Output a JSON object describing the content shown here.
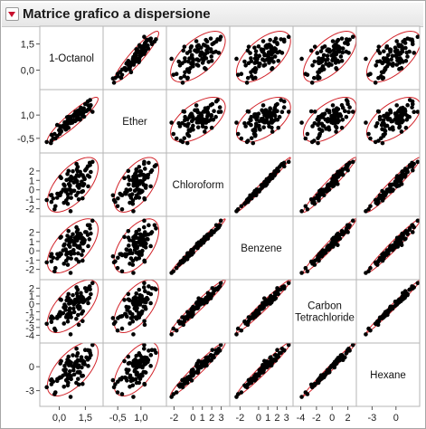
{
  "window": {
    "title": "Matrice grafico a dispersione"
  },
  "icons": {
    "menu": "red-triangle-disclosure-icon"
  },
  "colors": {
    "points": "#000000",
    "ellipse": "#d2232a",
    "grid": "#b5b5b5"
  },
  "chart_data": {
    "type": "scatter",
    "title": "Matrice grafico a dispersione",
    "variables": [
      "1-Octanol",
      "Ether",
      "Chloroform",
      "Benzene",
      "Carbon Tetrachloride",
      "Hexane"
    ],
    "diagonal_labels": [
      "1-Octanol",
      "Ether",
      "Chloroform",
      "Benzene",
      [
        "Carbon",
        "Tetrachloride"
      ],
      "Hexane"
    ],
    "ranges": [
      [
        -0.9,
        2.3
      ],
      [
        -1.2,
        2.4
      ],
      [
        -2.4,
        3.5
      ],
      [
        -2.7,
        3.3
      ],
      [
        -4.5,
        2.6
      ],
      [
        -4.5,
        2.5
      ]
    ],
    "y_ticks": [
      [
        {
          "v": 1.5,
          "label": "1,5"
        },
        {
          "v": 0,
          "label": "0,0"
        }
      ],
      [
        {
          "v": 1,
          "label": "1,0"
        },
        {
          "v": -0.5,
          "label": "-0,5"
        }
      ],
      [
        {
          "v": 2,
          "label": "2"
        },
        {
          "v": 1,
          "label": "1"
        },
        {
          "v": 0,
          "label": "0"
        },
        {
          "v": -1,
          "label": "-1"
        },
        {
          "v": -2,
          "label": "-2"
        }
      ],
      [
        {
          "v": 2,
          "label": "2"
        },
        {
          "v": 1,
          "label": "1"
        },
        {
          "v": 0,
          "label": "0"
        },
        {
          "v": -1,
          "label": "-1"
        },
        {
          "v": -2,
          "label": "-2"
        }
      ],
      [
        {
          "v": 2,
          "label": "2"
        },
        {
          "v": 1,
          "label": "1"
        },
        {
          "v": 0,
          "label": "0"
        },
        {
          "v": -1,
          "label": "-1"
        },
        {
          "v": -2,
          "label": "-2"
        },
        {
          "v": -3,
          "label": "-3"
        },
        {
          "v": -4,
          "label": "-4"
        }
      ],
      [
        {
          "v": 0,
          "label": "0"
        },
        {
          "v": -3,
          "label": "-3"
        }
      ]
    ],
    "x_ticks": [
      [
        {
          "v": 0,
          "label": "0,0"
        },
        {
          "v": 1.5,
          "label": "1,5"
        }
      ],
      [
        {
          "v": -0.5,
          "label": "-0,5"
        },
        {
          "v": 1,
          "label": "1,0"
        }
      ],
      [
        {
          "v": -2,
          "label": "-2"
        },
        {
          "v": 0,
          "label": "0"
        },
        {
          "v": 1,
          "label": "1"
        },
        {
          "v": 2,
          "label": "2"
        },
        {
          "v": 3,
          "label": "3"
        }
      ],
      [
        {
          "v": -2,
          "label": "-2"
        },
        {
          "v": 0,
          "label": "0"
        },
        {
          "v": 1,
          "label": "1"
        },
        {
          "v": 2,
          "label": "2"
        },
        {
          "v": 3,
          "label": "3"
        }
      ],
      [
        {
          "v": -4,
          "label": "-4"
        },
        {
          "v": -2,
          "label": "-2"
        },
        {
          "v": 0,
          "label": "0"
        },
        {
          "v": 2,
          "label": "2"
        }
      ],
      [
        {
          "v": -3,
          "label": "-3"
        },
        {
          "v": 0,
          "label": "0"
        }
      ]
    ],
    "points": [
      [
        0.55,
        0.53,
        0.61,
        0.62,
        0.7,
        0.72
      ],
      [
        1.91,
        1.21,
        2.96,
        3.24,
        2.65,
        2.73
      ],
      [
        1.13,
        0.73,
        1.46,
        1.39,
        0.19,
        0.16
      ],
      [
        -0.27,
        -0.22,
        -2.06,
        -2.21,
        -3.15,
        -3.44
      ],
      [
        1.2,
        0.7,
        1.9,
        1.84,
        0.72,
        0.77
      ],
      [
        1.24,
        1.47,
        1.59,
        1.75,
        1.38,
        0.85
      ],
      [
        0.11,
        -0.02,
        -0.28,
        -0.36,
        -1.27,
        -1.34
      ],
      [
        1.43,
        0.9,
        0.61,
        0.9,
        0.35,
        0.62
      ],
      [
        1.49,
        1.71,
        2.06,
        2.01,
        2.0,
        2.1
      ],
      [
        0.45,
        0.86,
        0.0,
        -0.17,
        -1.4,
        -1.07
      ],
      [
        1.06,
        0.88,
        2.43,
        2.26,
        1.8,
        1.69
      ],
      [
        0.37,
        0.06,
        0.02,
        0.15,
        -0.38,
        -0.37
      ],
      [
        0.61,
        0.76,
        0.41,
        0.44,
        0.11,
        0.22
      ],
      [
        0.4,
        0.48,
        -1.12,
        -1.07,
        -1.7,
        -1.68
      ],
      [
        1.41,
        1.44,
        1.31,
        1.24,
        0.59,
        0.61
      ],
      [
        0.59,
        0.72,
        1.12,
        0.87,
        0.44,
        0.65
      ],
      [
        1.25,
        1.15,
        1.6,
        1.71,
        0.59,
        0.79
      ],
      [
        1.35,
        0.92,
        1.54,
        1.36,
        0.82,
        0.76
      ],
      [
        0.68,
        0.51,
        1.4,
        1.44,
        0.38,
        0.52
      ],
      [
        1.08,
        0.95,
        -0.3,
        -0.28,
        -1.41,
        -1.53
      ],
      [
        -0.22,
        -0.51,
        -1.73,
        -1.86,
        -3.39,
        -3.22
      ],
      [
        1.01,
        0.7,
        2.16,
        2.04,
        1.33,
        1.36
      ],
      [
        0.93,
        1.21,
        1.18,
        1.14,
        0.25,
        0.26
      ],
      [
        1.64,
        1.34,
        1.51,
        1.7,
        0.6,
        0.89
      ],
      [
        0.61,
        0.59,
        0.49,
        0.44,
        -0.57,
        -0.58
      ],
      [
        1.37,
        1.32,
        0.45,
        0.77,
        0.21,
        0.4
      ],
      [
        0.22,
        0.31,
        0.01,
        0.05,
        -1.18,
        -1.1
      ],
      [
        0.78,
        0.94,
        1.96,
        1.78,
        1.11,
        1.44
      ],
      [
        -0.45,
        -0.66,
        -1.28,
        -1.14,
        -2.3,
        -2.2
      ],
      [
        0.05,
        0.28,
        -0.57,
        -0.27,
        -1.04,
        -1.33
      ],
      [
        0.99,
        1.2,
        2.74,
        2.53,
        2.11,
        2.26
      ],
      [
        1.66,
        1.63,
        0.37,
        0.5,
        0.09,
        0.1
      ],
      [
        0.75,
        0.51,
        1.2,
        1.06,
        0.18,
        0.09
      ],
      [
        0.03,
        -0.21,
        -0.56,
        -0.48,
        -1.56,
        -1.38
      ],
      [
        1.64,
        1.88,
        2.48,
        2.76,
        1.96,
        2.08
      ],
      [
        0.67,
        0.86,
        -0.36,
        -0.37,
        -1.17,
        -1.23
      ],
      [
        1.56,
        1.26,
        2.23,
        2.0,
        1.62,
        1.17
      ],
      [
        -0.44,
        -0.28,
        -0.54,
        -0.35,
        -1.61,
        -1.59
      ],
      [
        0.42,
        0.27,
        1.04,
        1.13,
        0.45,
        0.47
      ],
      [
        1.46,
        1.23,
        1.14,
        1.14,
        0.39,
        0.31
      ],
      [
        -0.01,
        0.02,
        -0.43,
        -0.6,
        -1.33,
        -1.44
      ],
      [
        1.27,
        1.05,
        1.59,
        1.31,
        1.0,
        1.2
      ],
      [
        0.31,
        0.53,
        0.44,
        0.7,
        -0.09,
        0.11
      ],
      [
        0.47,
        0.62,
        1.67,
        1.61,
        0.85,
        0.88
      ],
      [
        1.08,
        0.73,
        0.51,
        0.38,
        -0.24,
        -0.1
      ],
      [
        0.82,
        0.61,
        -0.1,
        0.08,
        -0.61,
        -0.43
      ],
      [
        0.84,
        0.94,
        0.79,
        0.86,
        -0.08,
        0.01
      ],
      [
        1.17,
        1.17,
        0.55,
        0.52,
        -0.35,
        -0.66
      ],
      [
        1.12,
        1.24,
        -1.01,
        -1.17,
        -2.66,
        -2.24
      ],
      [
        -0.35,
        -0.49,
        -0.91,
        -0.75,
        -1.81,
        -1.87
      ],
      [
        0.41,
        0.09,
        -0.12,
        -0.41,
        -1.61,
        -1.73
      ],
      [
        0.91,
        0.61,
        1.29,
        1.4,
        0.53,
        0.42
      ],
      [
        1.75,
        1.5,
        2.86,
        2.75,
        2.23,
        2.02
      ],
      [
        1.73,
        1.38,
        1.38,
        1.24,
        0.76,
        1.11
      ],
      [
        0.11,
        -0.07,
        1.25,
        1.49,
        0.5,
        0.7
      ],
      [
        1.34,
        1.22,
        -0.9,
        -1.06,
        -2.19,
        -2.16
      ],
      [
        1.05,
        1.27,
        0.41,
        0.45,
        -0.37,
        -0.7
      ],
      [
        0.64,
        0.48,
        0.98,
        1.07,
        0.12,
        0.25
      ],
      [
        0.49,
        0.44,
        -0.47,
        -0.26,
        -1.32,
        -1.5
      ],
      [
        0.93,
        0.98,
        0.84,
        0.64,
        0.18,
        0.14
      ],
      [
        1.81,
        1.64,
        1.89,
        1.86,
        1.24,
        1.46
      ],
      [
        0.06,
        0.19,
        1.37,
        1.41,
        0.57,
        0.41
      ],
      [
        0.36,
        0.11,
        -0.17,
        0.07,
        -0.77,
        -0.76
      ],
      [
        -0.12,
        0.36,
        -0.84,
        -0.82,
        -1.81,
        -1.78
      ],
      [
        1.03,
        0.91,
        0.91,
        1.1,
        0.34,
        0.22
      ],
      [
        0.49,
        0.47,
        -1.49,
        -1.51,
        -2.24,
        -2.34
      ],
      [
        1.29,
        1.04,
        -0.22,
        -0.44,
        -1.23,
        -1.17
      ],
      [
        0.85,
        0.68,
        0.8,
        0.64,
        0.06,
        0.02
      ],
      [
        1.77,
        1.97,
        2.62,
        2.41,
        1.84,
        1.75
      ],
      [
        0.98,
        0.72,
        -0.59,
        -0.91,
        -1.9,
        -2.02
      ],
      [
        0.53,
        0.18,
        2.0,
        2.12,
        1.25,
        1.26
      ],
      [
        -0.48,
        -0.81,
        -0.58,
        -0.6,
        -1.81,
        -1.69
      ],
      [
        1.06,
        1.0,
        1.95,
        1.72,
        0.97,
        0.81
      ],
      [
        0.27,
        0.28,
        -1.37,
        -1.39,
        -2.5,
        -2.51
      ],
      [
        -0.72,
        -0.74,
        -1.08,
        -1.25,
        -2.54,
        -2.57
      ],
      [
        0.51,
        0.88,
        -0.83,
        -0.79,
        -1.74,
        -2.01
      ],
      [
        0.65,
        0.51,
        -2.26,
        -2.38,
        -3.88,
        -3.79
      ],
      [
        0.26,
        0.21,
        0.57,
        0.56,
        -0.44,
        -0.41
      ],
      [
        1.36,
        1.09,
        -0.15,
        0.0,
        -0.94,
        -1.13
      ],
      [
        1.01,
        1.15,
        1.55,
        1.52,
        0.52,
        0.63
      ],
      [
        0.86,
        1.04,
        -0.1,
        -0.29,
        -1.05,
        -0.97
      ],
      [
        1.19,
        0.75,
        0.5,
        0.29,
        -0.53,
        -0.75
      ],
      [
        0.95,
        0.98,
        0.93,
        1.1,
        0.55,
        0.58
      ],
      [
        0.56,
        0.52,
        1.12,
        1.25,
        0.03,
        0.18
      ],
      [
        -0.11,
        -0.35,
        -0.41,
        -0.36,
        -1.63,
        -1.56
      ],
      [
        0.68,
        0.67,
        -0.85,
        -0.83,
        -1.7,
        -1.55
      ],
      [
        0.65,
        0.89,
        -0.02,
        -0.13,
        -1.3,
        -1.12
      ],
      [
        1.13,
        1.31,
        0.21,
        0.36,
        -0.64,
        -0.73
      ],
      [
        0.57,
        0.71,
        0.03,
        -0.21,
        -0.85,
        -0.98
      ],
      [
        1.29,
        1.1,
        0.87,
        0.89,
        0.29,
        -0.09
      ]
    ]
  }
}
